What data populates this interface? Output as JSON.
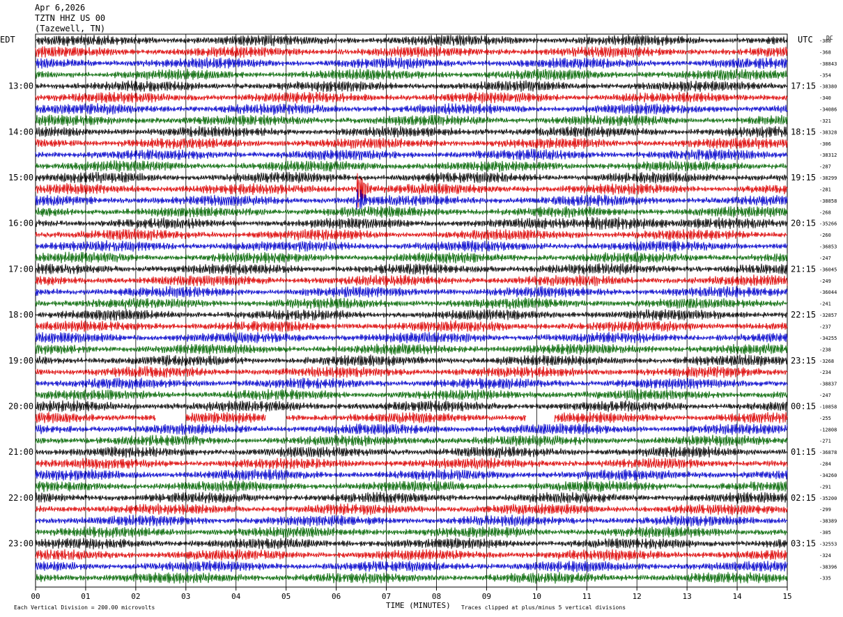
{
  "header": {
    "date": "Apr 6,2026",
    "station": "TZTN HHZ US 00",
    "location": "(Tazewell, TN)"
  },
  "labels": {
    "left_tz": "EDT",
    "right_tz": "UTC",
    "dc": "DC"
  },
  "footer": {
    "scale": "Each Vertical Division =  200.00 microvolts",
    "clip": "Traces clipped at plus/minus 5 vertical divisions"
  },
  "colors": {
    "trace_cycle": [
      "#000000",
      "#dd0000",
      "#0000cc",
      "#006600"
    ],
    "grid": "#000000",
    "background": "#ffffff"
  },
  "chart_data": {
    "type": "line",
    "title": "",
    "xlabel": "TIME (MINUTES)",
    "ylabel": "",
    "xlim": [
      0,
      15
    ],
    "x_ticks": [
      "00",
      "01",
      "02",
      "03",
      "04",
      "05",
      "06",
      "07",
      "08",
      "09",
      "10",
      "11",
      "12",
      "13",
      "14",
      "15"
    ],
    "trace_minutes": 15,
    "traces_per_hour": 4,
    "hour_labels_left": [
      "13:00",
      "14:00",
      "15:00",
      "16:00",
      "17:00",
      "18:00",
      "19:00",
      "20:00",
      "21:00",
      "22:00",
      "23:00"
    ],
    "hour_labels_right": [
      "17:15",
      "18:15",
      "19:15",
      "20:15",
      "21:15",
      "22:15",
      "23:15",
      "00:15",
      "01:15",
      "02:15",
      "03:15"
    ],
    "dc_offsets": [
      "-388",
      "-368",
      "-38843",
      "-354",
      "-38380",
      "-340",
      "-34086",
      "-321",
      "-38328",
      "-306",
      "-38312",
      "-287",
      "-38299",
      "-281",
      "-38858",
      "-268",
      "-35266",
      "-260",
      "-36853",
      "-247",
      "-36045",
      "-249",
      "-36044",
      "-241",
      "-32857",
      "-237",
      "-34255",
      "-238",
      "-3268",
      "-234",
      "-38837",
      "-247",
      "-10858",
      "-255",
      "-12808",
      "-271",
      "-36878",
      "-284",
      "-34260",
      "-291",
      "-35200",
      "-299",
      "-38389",
      "-305",
      "-32553",
      "-324",
      "-38396",
      "-335"
    ],
    "events": [
      {
        "trace": 13,
        "minute": 6.45,
        "amplitude": 5,
        "note": "clipped"
      },
      {
        "trace": 14,
        "minute": 6.45,
        "amplitude": 3.5
      },
      {
        "trace": 16,
        "minute": 11.0,
        "duration": 1.6,
        "amplitude": 1.6
      },
      {
        "trace": 21,
        "minute": 14.45,
        "amplitude": 1.5
      }
    ],
    "gaps": [
      {
        "trace": 33,
        "start": 2.4,
        "end": 3.0
      },
      {
        "trace": 33,
        "start": 4.6,
        "end": 5.0
      },
      {
        "trace": 33,
        "start": 9.8,
        "end": 10.35
      }
    ]
  }
}
